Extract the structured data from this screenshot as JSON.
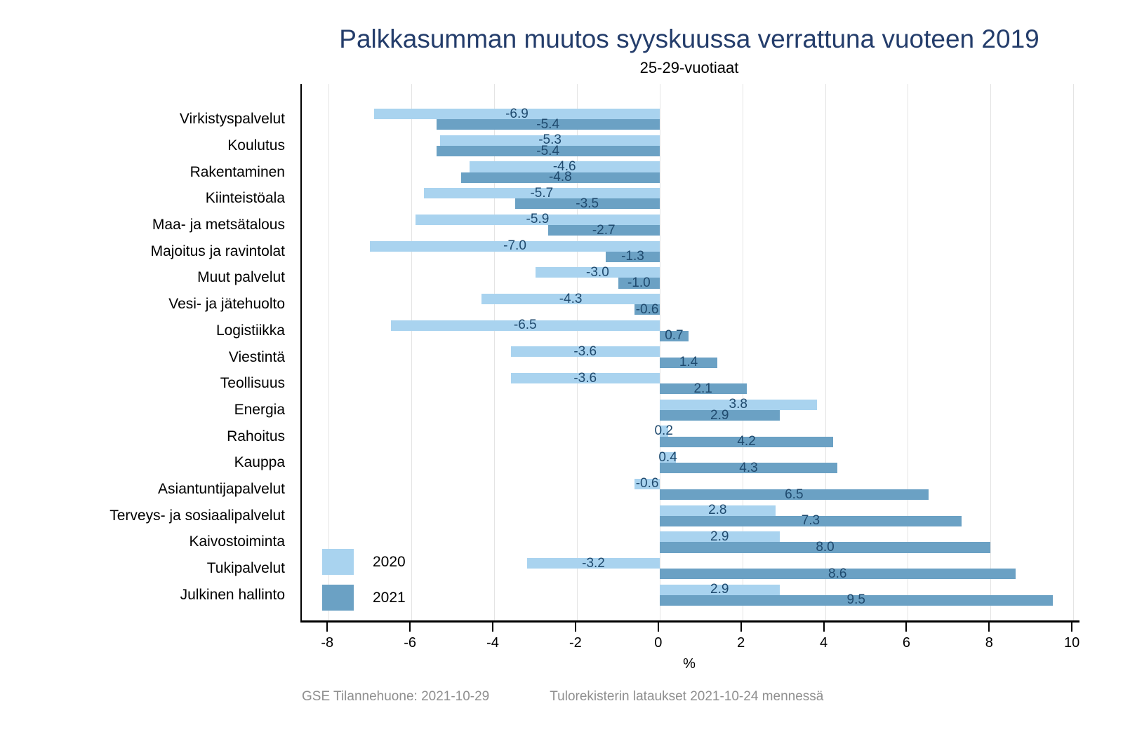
{
  "header": {
    "title": "Palkkasumman muutos syyskuussa verrattuna vuoteen 2019",
    "subtitle": "25-29-vuotiaat"
  },
  "footer": {
    "left": "GSE Tilannehuone: 2021-10-29",
    "right": "Tulorekisterin lataukset 2021-10-24 mennessä"
  },
  "chart_data": {
    "type": "bar",
    "orientation": "horizontal",
    "title": "Palkkasumman muutos syyskuussa verrattuna vuoteen 2019",
    "subtitle": "25-29-vuotiaat",
    "xlabel": "%",
    "x_ticks": [
      -8,
      -6,
      -4,
      -2,
      0,
      2,
      4,
      6,
      8,
      10
    ],
    "xlim": [
      -8.65,
      10.15
    ],
    "grid": true,
    "legend_position": "inside-bottom-left",
    "categories": [
      "Virkistyspalvelut",
      "Koulutus",
      "Rakentaminen",
      "Kiinteistöala",
      "Maa- ja metsätalous",
      "Majoitus ja ravintolat",
      "Muut palvelut",
      "Vesi- ja jätehuolto",
      "Logistiikka",
      "Viestintä",
      "Teollisuus",
      "Energia",
      "Rahoitus",
      "Kauppa",
      "Asiantuntijapalvelut",
      "Terveys- ja sosiaalipalvelut",
      "Kaivostoiminta",
      "Tukipalvelut",
      "Julkinen hallinto"
    ],
    "series": [
      {
        "name": "2020",
        "color": "#a9d3ef",
        "values": [
          -6.9,
          -5.3,
          -4.6,
          -5.7,
          -5.9,
          -7.0,
          -3.0,
          -4.3,
          -6.5,
          -3.6,
          -3.6,
          3.8,
          0.2,
          0.4,
          -0.6,
          2.8,
          2.9,
          -3.2,
          2.9
        ]
      },
      {
        "name": "2021",
        "color": "#6ba1c4",
        "values": [
          -5.4,
          -5.4,
          -4.8,
          -3.5,
          -2.7,
          -1.3,
          -1.0,
          -0.6,
          0.7,
          1.4,
          2.1,
          2.9,
          4.2,
          4.3,
          6.5,
          7.3,
          8.0,
          8.6,
          9.5
        ]
      }
    ],
    "colors": {
      "title": "#243d6b",
      "value_label": "#1f4a6e",
      "axis": "#000000",
      "grid": "#e4e4e4",
      "footer": "#8f8f8f"
    }
  }
}
